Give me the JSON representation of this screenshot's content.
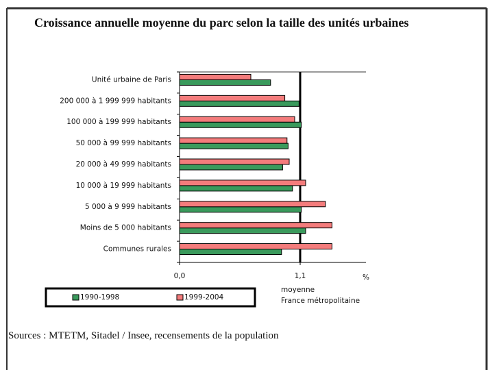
{
  "chart_data": {
    "type": "hbar",
    "title": "Croissance annuelle moyenne du parc selon la taille des unités urbaines",
    "categories": [
      "Unité urbaine de Paris",
      "200 000 à 1 999 999 habitants",
      "100 000 à 199 999 habitants",
      "50 000 à 99 999 habitants",
      "20 000 à 49 999 habitants",
      "10 000 à 19 999 habitants",
      "5 000 à 9 999 habitants",
      "Moins de 5 000 habitants",
      "Communes rurales"
    ],
    "series": [
      {
        "name": "1990-1998",
        "color": "#3a9a5c",
        "values": [
          0.83,
          1.09,
          1.11,
          0.99,
          0.94,
          1.03,
          1.11,
          1.15,
          0.93
        ]
      },
      {
        "name": "1999-2004",
        "color": "#f47c7c",
        "values": [
          0.65,
          0.96,
          1.05,
          0.98,
          1.0,
          1.15,
          1.33,
          1.39,
          1.39
        ]
      }
    ],
    "xlim": [
      0,
      1.7
    ],
    "xticks": [
      {
        "value": 0,
        "label": "0,0"
      },
      {
        "value": 1.1,
        "label": "1,1"
      }
    ],
    "x_label": "%",
    "reference_line": 1.1,
    "annotation": [
      "moyenne",
      "France métropolitaine"
    ],
    "source": "Sources : MTETM, Sitadel / Insee, recensements de la population"
  }
}
